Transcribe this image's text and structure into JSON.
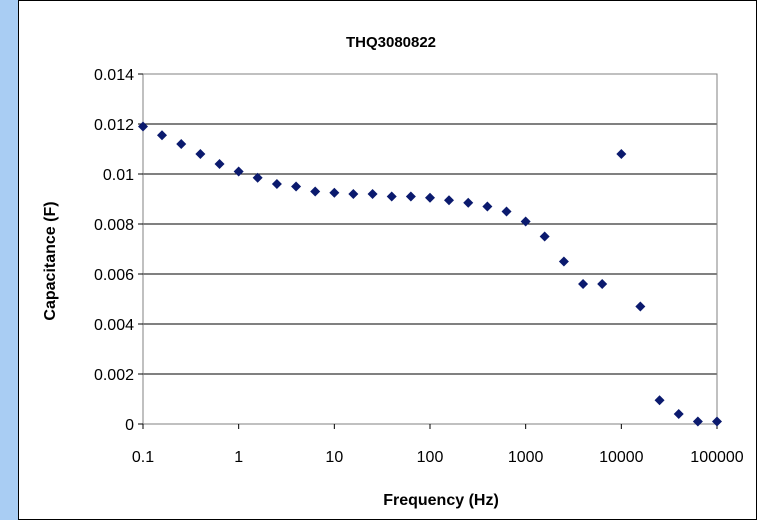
{
  "colors": {
    "left_strip": "#a9cdf3",
    "marker": "#0b1a6e",
    "gridline": "#000000",
    "plot_border": "#808080"
  },
  "chart_data": {
    "type": "scatter",
    "title": "THQ3080822",
    "xlabel": "Frequency (Hz)",
    "ylabel": "Capacitance (F)",
    "x_scale": "log",
    "xlim": [
      0.1,
      100000
    ],
    "ylim": [
      0,
      0.014
    ],
    "x_ticks": [
      "0.1",
      "1",
      "10",
      "100",
      "1000",
      "10000",
      "100000"
    ],
    "y_ticks": [
      "0",
      "0.002",
      "0.004",
      "0.006",
      "0.008",
      "0.01",
      "0.012",
      "0.014"
    ],
    "grid": "horizontal",
    "legend": "none",
    "marker": "diamond",
    "points": [
      {
        "x": 0.1,
        "y": 0.0119
      },
      {
        "x": 0.158,
        "y": 0.01155
      },
      {
        "x": 0.251,
        "y": 0.0112
      },
      {
        "x": 0.398,
        "y": 0.0108
      },
      {
        "x": 0.631,
        "y": 0.0104
      },
      {
        "x": 1,
        "y": 0.0101
      },
      {
        "x": 1.58,
        "y": 0.00985
      },
      {
        "x": 2.51,
        "y": 0.0096
      },
      {
        "x": 3.98,
        "y": 0.0095
      },
      {
        "x": 6.31,
        "y": 0.0093
      },
      {
        "x": 10,
        "y": 0.00925
      },
      {
        "x": 15.8,
        "y": 0.0092
      },
      {
        "x": 25.1,
        "y": 0.0092
      },
      {
        "x": 39.8,
        "y": 0.0091
      },
      {
        "x": 63.1,
        "y": 0.0091
      },
      {
        "x": 100,
        "y": 0.00905
      },
      {
        "x": 158,
        "y": 0.00895
      },
      {
        "x": 251,
        "y": 0.00885
      },
      {
        "x": 398,
        "y": 0.0087
      },
      {
        "x": 631,
        "y": 0.0085
      },
      {
        "x": 1000,
        "y": 0.0081
      },
      {
        "x": 1580,
        "y": 0.0075
      },
      {
        "x": 2510,
        "y": 0.0065
      },
      {
        "x": 3980,
        "y": 0.0056
      },
      {
        "x": 6310,
        "y": 0.0056
      },
      {
        "x": 10000,
        "y": 0.0108
      },
      {
        "x": 15800,
        "y": 0.0047
      },
      {
        "x": 25100,
        "y": 0.00095
      },
      {
        "x": 39800,
        "y": 0.0004
      },
      {
        "x": 63100,
        "y": 0.0001
      },
      {
        "x": 100000,
        "y": 0.0001
      }
    ]
  }
}
